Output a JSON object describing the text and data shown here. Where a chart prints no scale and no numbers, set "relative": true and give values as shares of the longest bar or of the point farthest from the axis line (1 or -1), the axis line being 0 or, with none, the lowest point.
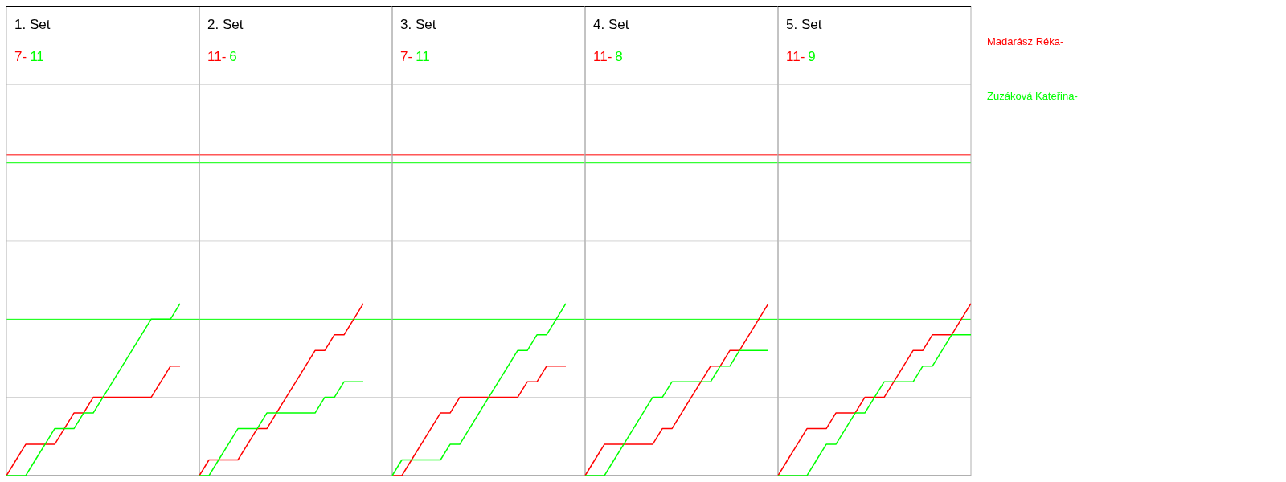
{
  "chart_data": [
    {
      "type": "line",
      "title": "1. Set",
      "annotations": [
        "7-",
        "11"
      ],
      "relative": true,
      "categories": [
        null,
        null,
        null,
        null,
        null,
        null,
        null,
        null,
        null,
        null,
        null,
        null,
        null,
        null,
        null,
        null,
        null,
        null,
        null
      ],
      "ref_lines": [
        {
          "axis": "y",
          "value": 0.455,
          "color": "#d3d3d3"
        },
        {
          "axis": "y",
          "value": 1.364,
          "color": "#d3d3d3"
        },
        {
          "axis": "y",
          "value": 2.273,
          "color": "#d3d3d3"
        },
        {
          "axis": "y",
          "value": 0.909,
          "color": "#00ff00"
        },
        {
          "axis": "y",
          "value": 1.818,
          "color": "#00ff00"
        },
        {
          "axis": "y",
          "value": 1.864,
          "color": "#ff0000"
        }
      ],
      "series": [
        {
          "color": "#ff0000",
          "values": [
            0,
            0.091,
            0.182,
            0.182,
            0.182,
            0.182,
            0.273,
            0.364,
            0.364,
            0.455,
            0.455,
            0.455,
            0.455,
            0.455,
            0.455,
            0.455,
            0.545,
            0.636,
            0.636
          ]
        },
        {
          "color": "#00ff00",
          "values": [
            0,
            0,
            0,
            0.091,
            0.182,
            0.273,
            0.273,
            0.273,
            0.364,
            0.364,
            0.455,
            0.545,
            0.636,
            0.727,
            0.818,
            0.909,
            0.909,
            0.909,
            1
          ]
        }
      ]
    },
    {
      "type": "line",
      "title": "2. Set",
      "annotations": [
        "11-",
        "6"
      ],
      "relative": true,
      "categories": [
        null,
        null,
        null,
        null,
        null,
        null,
        null,
        null,
        null,
        null,
        null,
        null,
        null,
        null,
        null,
        null,
        null,
        null
      ],
      "ref_lines": [
        {
          "axis": "y",
          "value": 0.455,
          "color": "#d3d3d3"
        },
        {
          "axis": "y",
          "value": 1.364,
          "color": "#d3d3d3"
        },
        {
          "axis": "y",
          "value": 2.273,
          "color": "#d3d3d3"
        },
        {
          "axis": "y",
          "value": 0.909,
          "color": "#00ff00"
        },
        {
          "axis": "y",
          "value": 1.818,
          "color": "#00ff00"
        },
        {
          "axis": "y",
          "value": 1.864,
          "color": "#ff0000"
        }
      ],
      "series": [
        {
          "color": "#ff0000",
          "values": [
            0,
            0.091,
            0.091,
            0.091,
            0.091,
            0.182,
            0.273,
            0.273,
            0.364,
            0.455,
            0.545,
            0.636,
            0.727,
            0.727,
            0.818,
            0.818,
            0.909,
            1
          ]
        },
        {
          "color": "#00ff00",
          "values": [
            0,
            0,
            0.091,
            0.182,
            0.273,
            0.273,
            0.273,
            0.364,
            0.364,
            0.364,
            0.364,
            0.364,
            0.364,
            0.455,
            0.455,
            0.545,
            0.545,
            0.545
          ]
        }
      ]
    },
    {
      "type": "line",
      "title": "3. Set",
      "annotations": [
        "7-",
        "11"
      ],
      "relative": true,
      "categories": [
        null,
        null,
        null,
        null,
        null,
        null,
        null,
        null,
        null,
        null,
        null,
        null,
        null,
        null,
        null,
        null,
        null,
        null,
        null
      ],
      "ref_lines": [
        {
          "axis": "y",
          "value": 0.455,
          "color": "#d3d3d3"
        },
        {
          "axis": "y",
          "value": 1.364,
          "color": "#d3d3d3"
        },
        {
          "axis": "y",
          "value": 2.273,
          "color": "#d3d3d3"
        },
        {
          "axis": "y",
          "value": 0.909,
          "color": "#00ff00"
        },
        {
          "axis": "y",
          "value": 1.818,
          "color": "#00ff00"
        },
        {
          "axis": "y",
          "value": 1.864,
          "color": "#ff0000"
        }
      ],
      "series": [
        {
          "color": "#ff0000",
          "values": [
            0,
            0,
            0.091,
            0.182,
            0.273,
            0.364,
            0.364,
            0.455,
            0.455,
            0.455,
            0.455,
            0.455,
            0.455,
            0.455,
            0.545,
            0.545,
            0.636,
            0.636,
            0.636
          ]
        },
        {
          "color": "#00ff00",
          "values": [
            0,
            0.091,
            0.091,
            0.091,
            0.091,
            0.091,
            0.182,
            0.182,
            0.273,
            0.364,
            0.455,
            0.545,
            0.636,
            0.727,
            0.727,
            0.818,
            0.818,
            0.909,
            1
          ]
        }
      ]
    },
    {
      "type": "line",
      "title": "4. Set",
      "annotations": [
        "11-",
        "8"
      ],
      "relative": true,
      "categories": [
        null,
        null,
        null,
        null,
        null,
        null,
        null,
        null,
        null,
        null,
        null,
        null,
        null,
        null,
        null,
        null,
        null,
        null,
        null,
        null
      ],
      "ref_lines": [
        {
          "axis": "y",
          "value": 0.455,
          "color": "#d3d3d3"
        },
        {
          "axis": "y",
          "value": 1.364,
          "color": "#d3d3d3"
        },
        {
          "axis": "y",
          "value": 2.273,
          "color": "#d3d3d3"
        },
        {
          "axis": "y",
          "value": 0.909,
          "color": "#00ff00"
        },
        {
          "axis": "y",
          "value": 1.818,
          "color": "#00ff00"
        },
        {
          "axis": "y",
          "value": 1.864,
          "color": "#ff0000"
        }
      ],
      "series": [
        {
          "color": "#ff0000",
          "values": [
            0,
            0.091,
            0.182,
            0.182,
            0.182,
            0.182,
            0.182,
            0.182,
            0.273,
            0.273,
            0.364,
            0.455,
            0.545,
            0.636,
            0.636,
            0.727,
            0.727,
            0.818,
            0.909,
            1
          ]
        },
        {
          "color": "#00ff00",
          "values": [
            0,
            0,
            0,
            0.091,
            0.182,
            0.273,
            0.364,
            0.455,
            0.455,
            0.545,
            0.545,
            0.545,
            0.545,
            0.545,
            0.636,
            0.636,
            0.727,
            0.727,
            0.727,
            0.727
          ]
        }
      ]
    },
    {
      "type": "line",
      "title": "5. Set",
      "annotations": [
        "11-",
        "9"
      ],
      "relative": true,
      "categories": [
        null,
        null,
        null,
        null,
        null,
        null,
        null,
        null,
        null,
        null,
        null,
        null,
        null,
        null,
        null,
        null,
        null,
        null,
        null,
        null,
        null
      ],
      "ref_lines": [
        {
          "axis": "y",
          "value": 0.455,
          "color": "#d3d3d3"
        },
        {
          "axis": "y",
          "value": 1.364,
          "color": "#d3d3d3"
        },
        {
          "axis": "y",
          "value": 2.273,
          "color": "#d3d3d3"
        },
        {
          "axis": "y",
          "value": 0.909,
          "color": "#00ff00"
        },
        {
          "axis": "y",
          "value": 1.818,
          "color": "#00ff00"
        },
        {
          "axis": "y",
          "value": 1.864,
          "color": "#ff0000"
        }
      ],
      "series": [
        {
          "name": "Madarász Réka-",
          "color": "#ff0000",
          "values": [
            0,
            0.091,
            0.182,
            0.273,
            0.273,
            0.273,
            0.364,
            0.364,
            0.364,
            0.455,
            0.455,
            0.455,
            0.545,
            0.636,
            0.727,
            0.727,
            0.818,
            0.818,
            0.818,
            0.909,
            1
          ]
        },
        {
          "name": "Zuzáková Kateřina-",
          "color": "#00ff00",
          "values": [
            0,
            0,
            0,
            0,
            0.091,
            0.182,
            0.182,
            0.273,
            0.364,
            0.364,
            0.455,
            0.545,
            0.545,
            0.545,
            0.545,
            0.636,
            0.636,
            0.727,
            0.818,
            0.818,
            0.818
          ]
        }
      ]
    }
  ]
}
